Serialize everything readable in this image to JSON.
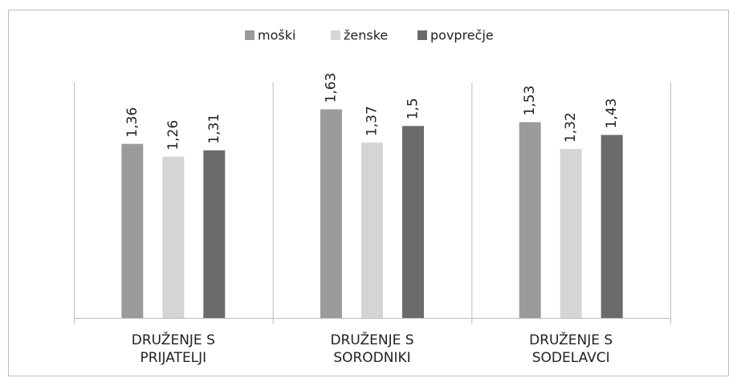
{
  "chart_data": {
    "type": "bar",
    "categories": [
      "DRUŽENJE S PRIJATELJI",
      "DRUŽENJE S SORODNIKI",
      "DRUŽENJE S SODELAVCI"
    ],
    "series": [
      {
        "name": "moški",
        "color": "#9b9b9b",
        "values": [
          1.36,
          1.63,
          1.53
        ],
        "value_labels": [
          "1,36",
          "1,63",
          "1,53"
        ]
      },
      {
        "name": "ženske",
        "color": "#d5d5d5",
        "values": [
          1.26,
          1.37,
          1.32
        ],
        "value_labels": [
          "1,26",
          "1,37",
          "1,32"
        ]
      },
      {
        "name": "povprečje",
        "color": "#6b6b6d",
        "values": [
          1.31,
          1.5,
          1.43
        ],
        "value_labels": [
          "1,31",
          "1,5",
          "1,43"
        ]
      }
    ],
    "ylim": [
      0,
      1.84
    ]
  }
}
